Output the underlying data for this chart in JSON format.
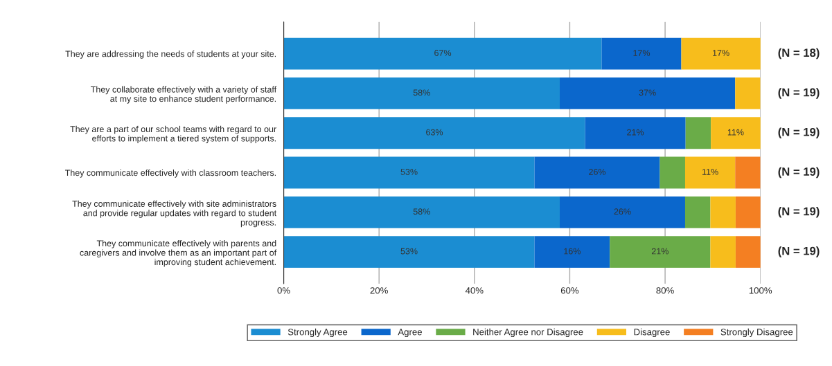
{
  "chart_data": {
    "type": "bar",
    "orientation": "horizontal",
    "stacked": true,
    "categories": [
      "They are addressing the needs of students at your site.",
      "They collaborate effectively with a variety of staff\nat my site to enhance student performance.",
      "They are a part of our school teams with regard to our\nefforts to implement a tiered system of supports.",
      "They communicate effectively with classroom teachers.",
      "They communicate effectively with site administrators\nand provide regular updates with regard to student\nprogress.",
      "They communicate effectively with parents and\ncaregivers and involve them as an important part of\nimproving student achievement."
    ],
    "series": [
      {
        "name": "Strongly Agree",
        "color": "#1b8dd2",
        "values": [
          66.7,
          57.9,
          63.2,
          52.6,
          57.9,
          52.6
        ],
        "value_labels": [
          "67%",
          "58%",
          "63%",
          "53%",
          "58%",
          "53%"
        ]
      },
      {
        "name": "Agree",
        "color": "#0b67cc",
        "values": [
          16.7,
          36.8,
          21.1,
          26.3,
          26.3,
          15.8
        ],
        "value_labels": [
          "17%",
          "37%",
          "21%",
          "26%",
          "26%",
          "16%"
        ]
      },
      {
        "name": "Neither Agree nor Disagree",
        "color": "#6aac48",
        "values": [
          0,
          0,
          5.3,
          5.3,
          5.3,
          21.1
        ],
        "value_labels": [
          null,
          null,
          null,
          null,
          null,
          "21%"
        ]
      },
      {
        "name": "Disagree",
        "color": "#f7bd1c",
        "values": [
          16.7,
          5.3,
          10.5,
          10.5,
          5.3,
          5.3
        ],
        "value_labels": [
          "17%",
          null,
          "11%",
          "11%",
          null,
          null
        ]
      },
      {
        "name": "Strongly Disagree",
        "color": "#f47f22",
        "values": [
          0,
          0,
          0,
          5.3,
          5.3,
          5.3
        ],
        "value_labels": [
          null,
          null,
          null,
          null,
          null,
          null
        ]
      }
    ],
    "xlim": [
      0,
      100
    ],
    "xticks": [
      {
        "value": 0,
        "label": "0%"
      },
      {
        "value": 20,
        "label": "20%"
      },
      {
        "value": 40,
        "label": "40%"
      },
      {
        "value": 60,
        "label": "60%"
      },
      {
        "value": 80,
        "label": "80%"
      },
      {
        "value": 100,
        "label": "100%"
      }
    ],
    "grid": "x",
    "legend": "bottom",
    "annotations": [
      "(N = 18)",
      "(N = 19)",
      "(N = 19)",
      "(N = 19)",
      "(N = 19)",
      "(N = 19)"
    ]
  }
}
